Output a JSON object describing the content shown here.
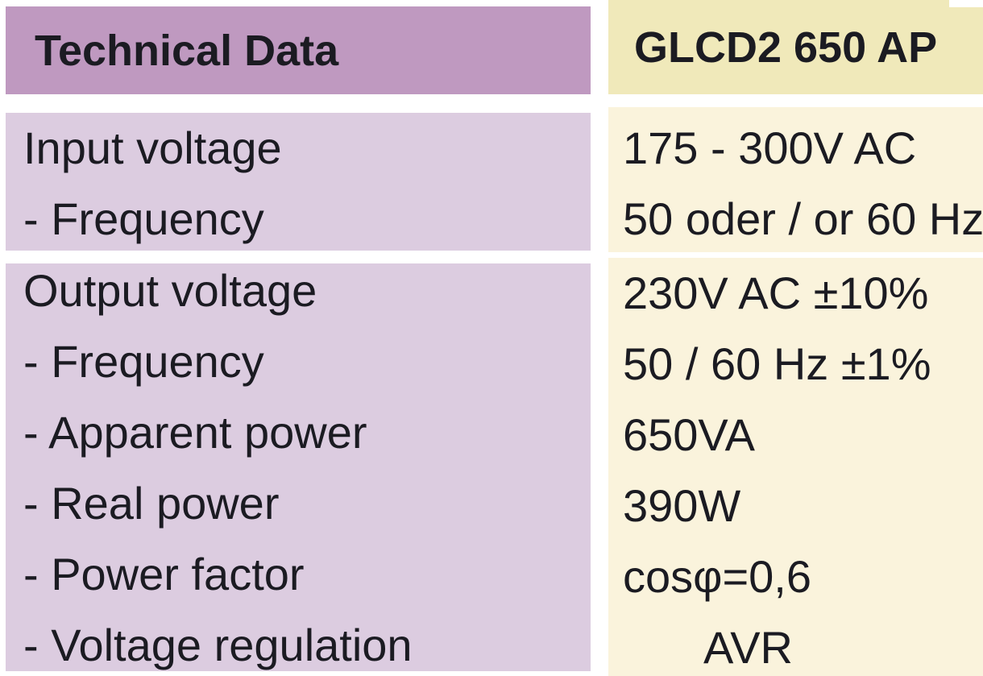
{
  "table": {
    "header": {
      "left": "Technical Data",
      "right": "GLCD2 650 AP"
    },
    "groups": [
      {
        "rows": [
          {
            "label": "Input voltage",
            "value": "175 - 300V AC"
          },
          {
            "label": "- Frequency",
            "value": "50 oder / or 60 Hz"
          }
        ]
      },
      {
        "rows": [
          {
            "label": "Output voltage",
            "value": "230V AC ±10%"
          },
          {
            "label": "- Frequency",
            "value": "50 / 60 Hz ±1%"
          },
          {
            "label": "- Apparent power",
            "value": "650VA"
          },
          {
            "label": "- Real power",
            "value": "390W"
          },
          {
            "label": "- Power factor",
            "value": "cosφ=0,6"
          },
          {
            "label": "- Voltage regulation",
            "value": "AVR",
            "value_indent": true
          }
        ]
      }
    ]
  },
  "colors": {
    "header_left_bg": "#bf99c0",
    "header_right_bg": "#f0e9ba",
    "body_left_bg": "#dccce0",
    "body_right_bg": "#faf3dc",
    "text": "#1b1b22",
    "gap": "#ffffff"
  }
}
